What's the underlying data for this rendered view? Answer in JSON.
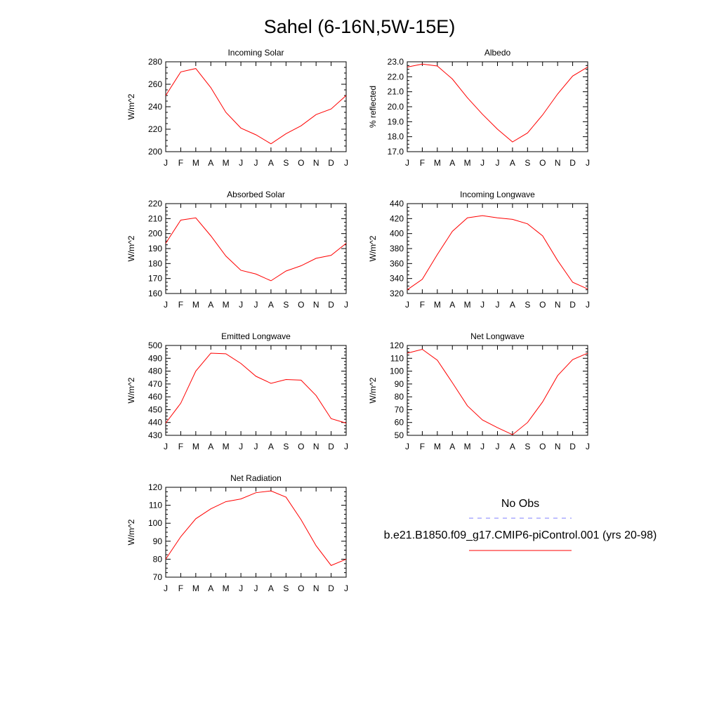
{
  "figure": {
    "title": "Sahel (6-16N,5W-15E)"
  },
  "legend": {
    "obs_label": "No Obs",
    "obs_color": "#8080ff",
    "model_label": "b.e21.B1850.f09_g17.CMIP6-piControl.001 (yrs 20-98)",
    "model_color": "#ff0000"
  },
  "chart_data": [
    {
      "type": "line",
      "title": "Incoming Solar",
      "xlabel": "",
      "ylabel": "W/m^2",
      "categories": [
        "J",
        "F",
        "M",
        "A",
        "M",
        "J",
        "J",
        "A",
        "S",
        "O",
        "N",
        "D",
        "J"
      ],
      "ylim": [
        200,
        280
      ],
      "yticks": [
        200,
        220,
        240,
        260,
        280
      ],
      "ytick_labels": [
        "200",
        "220",
        "240",
        "260",
        "280"
      ],
      "series": [
        {
          "name": "b.e21.B1850.f09_g17.CMIP6-piControl.001 (yrs 20-98)",
          "color": "#ff0000",
          "values": [
            250,
            271,
            274,
            257,
            235,
            221,
            215,
            207,
            216,
            223,
            233,
            238,
            250
          ]
        }
      ]
    },
    {
      "type": "line",
      "title": "Albedo",
      "xlabel": "",
      "ylabel": "% reflected",
      "categories": [
        "J",
        "F",
        "M",
        "A",
        "M",
        "J",
        "J",
        "A",
        "S",
        "O",
        "N",
        "D",
        "J"
      ],
      "ylim": [
        17.0,
        23.0
      ],
      "yticks": [
        17,
        18,
        19,
        20,
        21,
        22,
        23
      ],
      "ytick_labels": [
        "17.0",
        "18.0",
        "19.0",
        "20.0",
        "21.0",
        "22.0",
        "23.0"
      ],
      "series": [
        {
          "name": "b.e21.B1850.f09_g17.CMIP6-piControl.001 (yrs 20-98)",
          "color": "#ff0000",
          "values": [
            22.65,
            22.85,
            22.72,
            21.85,
            20.6,
            19.5,
            18.5,
            17.65,
            18.25,
            19.45,
            20.85,
            22.05,
            22.65
          ]
        }
      ]
    },
    {
      "type": "line",
      "title": "Absorbed Solar",
      "xlabel": "",
      "ylabel": "W/m^2",
      "categories": [
        "J",
        "F",
        "M",
        "A",
        "M",
        "J",
        "J",
        "A",
        "S",
        "O",
        "N",
        "D",
        "J"
      ],
      "ylim": [
        160,
        220
      ],
      "yticks": [
        160,
        170,
        180,
        190,
        200,
        210,
        220
      ],
      "ytick_labels": [
        "160",
        "170",
        "180",
        "190",
        "200",
        "210",
        "220"
      ],
      "series": [
        {
          "name": "b.e21.B1850.f09_g17.CMIP6-piControl.001 (yrs 20-98)",
          "color": "#ff0000",
          "values": [
            193.5,
            209,
            210.5,
            198.5,
            185,
            175.5,
            173,
            168.5,
            175,
            178.5,
            183.5,
            185.5,
            193.5
          ]
        }
      ]
    },
    {
      "type": "line",
      "title": "Incoming Longwave",
      "xlabel": "",
      "ylabel": "W/m^2",
      "categories": [
        "J",
        "F",
        "M",
        "A",
        "M",
        "J",
        "J",
        "A",
        "S",
        "O",
        "N",
        "D",
        "J"
      ],
      "ylim": [
        320,
        440
      ],
      "yticks": [
        320,
        340,
        360,
        380,
        400,
        420,
        440
      ],
      "ytick_labels": [
        "320",
        "340",
        "360",
        "380",
        "400",
        "420",
        "440"
      ],
      "series": [
        {
          "name": "b.e21.B1850.f09_g17.CMIP6-piControl.001 (yrs 20-98)",
          "color": "#ff0000",
          "values": [
            325,
            339,
            372,
            403,
            421,
            424,
            421,
            419,
            413,
            397,
            364,
            335,
            326
          ]
        }
      ]
    },
    {
      "type": "line",
      "title": "Emitted Longwave",
      "xlabel": "",
      "ylabel": "W/m^2",
      "categories": [
        "J",
        "F",
        "M",
        "A",
        "M",
        "J",
        "J",
        "A",
        "S",
        "O",
        "N",
        "D",
        "J"
      ],
      "ylim": [
        430,
        500
      ],
      "yticks": [
        430,
        440,
        450,
        460,
        470,
        480,
        490,
        500
      ],
      "ytick_labels": [
        "430",
        "440",
        "450",
        "460",
        "470",
        "480",
        "490",
        "500"
      ],
      "series": [
        {
          "name": "b.e21.B1850.f09_g17.CMIP6-piControl.001 (yrs 20-98)",
          "color": "#ff0000",
          "values": [
            439.5,
            455,
            480,
            494,
            493.5,
            486,
            476,
            470.5,
            473.5,
            473,
            461,
            443,
            439.5
          ]
        }
      ]
    },
    {
      "type": "line",
      "title": "Net Longwave",
      "xlabel": "",
      "ylabel": "W/m^2",
      "categories": [
        "J",
        "F",
        "M",
        "A",
        "M",
        "J",
        "J",
        "A",
        "S",
        "O",
        "N",
        "D",
        "J"
      ],
      "ylim": [
        50,
        120
      ],
      "yticks": [
        50,
        60,
        70,
        80,
        90,
        100,
        110,
        120
      ],
      "ytick_labels": [
        "50",
        "60",
        "70",
        "80",
        "90",
        "100",
        "110",
        "120"
      ],
      "series": [
        {
          "name": "b.e21.B1850.f09_g17.CMIP6-piControl.001 (yrs 20-98)",
          "color": "#ff0000",
          "values": [
            114,
            117,
            108.5,
            91,
            73,
            62,
            56,
            50.5,
            60,
            76,
            96.5,
            109,
            114
          ]
        }
      ]
    },
    {
      "type": "line",
      "title": "Net Radiation",
      "xlabel": "",
      "ylabel": "W/m^2",
      "categories": [
        "J",
        "F",
        "M",
        "A",
        "M",
        "J",
        "J",
        "A",
        "S",
        "O",
        "N",
        "D",
        "J"
      ],
      "ylim": [
        70,
        120
      ],
      "yticks": [
        70,
        80,
        90,
        100,
        110,
        120
      ],
      "ytick_labels": [
        "70",
        "80",
        "90",
        "100",
        "110",
        "120"
      ],
      "series": [
        {
          "name": "b.e21.B1850.f09_g17.CMIP6-piControl.001 (yrs 20-98)",
          "color": "#ff0000",
          "values": [
            80,
            92.5,
            102.5,
            108,
            112,
            113.5,
            117,
            118,
            114.5,
            102,
            87.5,
            76.5,
            80
          ]
        }
      ]
    }
  ]
}
